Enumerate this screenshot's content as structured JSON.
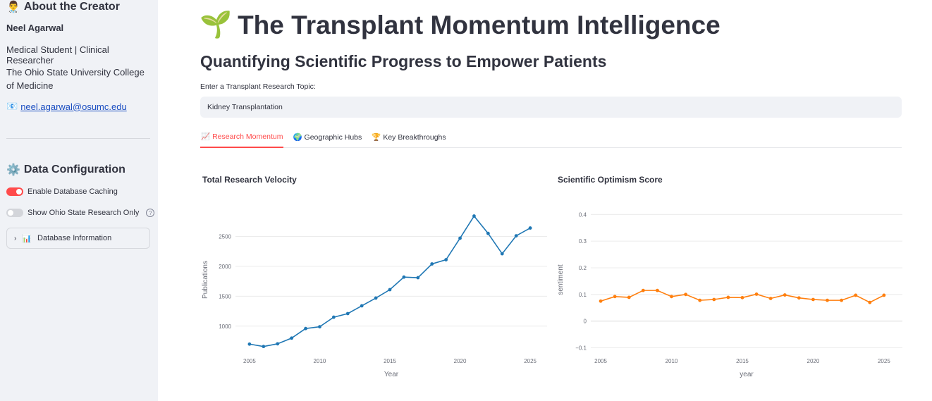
{
  "sidebar": {
    "creator_heading": "About the Creator",
    "creator_icon": "👨‍⚕️",
    "name": "Neel Agarwal",
    "role": "Medical Student | Clinical Researcher",
    "institution": "The Ohio State University College of Medicine",
    "email_icon": "📧",
    "email": "neel.agarwal@osumc.edu",
    "config_icon": "⚙️",
    "config_heading": "Data Configuration",
    "toggle_caching_label": "Enable Database Caching",
    "toggle_caching_on": true,
    "toggle_osu_label": "Show Ohio State Research Only",
    "toggle_osu_on": false,
    "help_symbol": "?",
    "expander_icon": "📊",
    "expander_label": "Database Information"
  },
  "main": {
    "title_icon": "🌱",
    "title": "The Transplant Momentum Intelligence",
    "subtitle": "Quantifying Scientific Progress to Empower Patients",
    "input_label": "Enter a Transplant Research Topic:",
    "input_value": "Kidney Transplantation",
    "tabs": [
      {
        "icon": "📈",
        "label": "Research Momentum",
        "active": true
      },
      {
        "icon": "🌍",
        "label": "Geographic Hubs",
        "active": false
      },
      {
        "icon": "🏆",
        "label": "Key Breakthroughs",
        "active": false
      }
    ]
  },
  "colors": {
    "accent": "#ff4b4b",
    "velocity_line": "#1f77b4",
    "optimism_line": "#ff7f0e"
  },
  "chart_data": [
    {
      "type": "line",
      "title": "Total Research Velocity",
      "xlabel": "Year",
      "ylabel": "Publications",
      "x": [
        2005,
        2006,
        2007,
        2008,
        2009,
        2010,
        2011,
        2012,
        2013,
        2014,
        2015,
        2016,
        2017,
        2018,
        2019,
        2020,
        2021,
        2022,
        2023,
        2024,
        2025
      ],
      "series": [
        {
          "values": [
            700,
            660,
            705,
            800,
            960,
            990,
            1150,
            1210,
            1340,
            1470,
            1610,
            1820,
            1810,
            2040,
            2110,
            2470,
            2840,
            2550,
            2210,
            2510,
            2640
          ]
        }
      ],
      "xticks": [
        "2005",
        "2010",
        "2015",
        "2020",
        "2025"
      ],
      "yticks": [
        "1000",
        "1500",
        "2000",
        "2500"
      ],
      "xlim": [
        2004,
        2026.2
      ],
      "ylim": [
        550,
        3000
      ],
      "grid": true
    },
    {
      "type": "line",
      "title": "Scientific Optimism Score",
      "xlabel": "year",
      "ylabel": "sentiment",
      "x": [
        2005,
        2006,
        2007,
        2008,
        2009,
        2010,
        2011,
        2012,
        2013,
        2014,
        2015,
        2016,
        2017,
        2018,
        2019,
        2020,
        2021,
        2022,
        2023,
        2024,
        2025
      ],
      "series": [
        {
          "values": [
            0.075,
            0.092,
            0.089,
            0.115,
            0.115,
            0.092,
            0.1,
            0.078,
            0.081,
            0.089,
            0.088,
            0.101,
            0.085,
            0.098,
            0.087,
            0.081,
            0.078,
            0.078,
            0.097,
            0.07,
            0.097
          ]
        }
      ],
      "xticks": [
        "2005",
        "2010",
        "2015",
        "2020",
        "2025"
      ],
      "yticks": [
        "−0.1",
        "0",
        "0.1",
        "0.2",
        "0.3",
        "0.4"
      ],
      "xlim": [
        2004.3,
        2026.3
      ],
      "ylim": [
        -0.12,
        0.43
      ],
      "grid": true
    }
  ]
}
